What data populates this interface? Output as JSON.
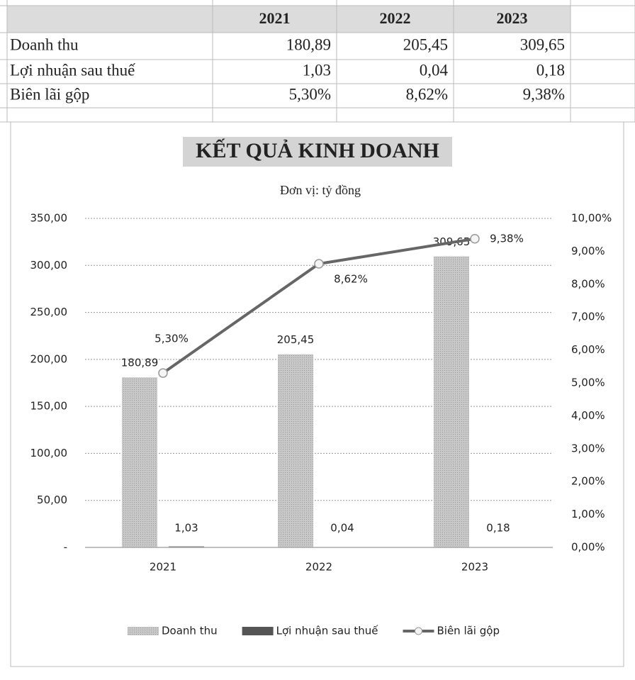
{
  "table": {
    "header": [
      "2021",
      "2022",
      "2023"
    ],
    "rows": [
      [
        "Doanh thu",
        "180,89",
        "205,45",
        "309,65"
      ],
      [
        "Lợi nhuận sau thuế",
        "1,03",
        "0,04",
        "0,18"
      ],
      [
        "Biên lãi gộp",
        "5,30%",
        "8,62%",
        "9,38%"
      ]
    ]
  },
  "chart_data": {
    "type": "bar",
    "title": "KẾT QUẢ KINH DOANH",
    "subtitle": "Đơn vị: tỷ đồng",
    "categories": [
      "2021",
      "2022",
      "2023"
    ],
    "series": [
      {
        "name": "Doanh thu",
        "type": "bar",
        "color": "#bdbdbd",
        "values": [
          180.89,
          205.45,
          309.65
        ],
        "value_labels": [
          "180,89",
          "205,45",
          "309,65"
        ]
      },
      {
        "name": "Lợi nhuận sau thuế",
        "type": "bar",
        "color": "#555555",
        "values": [
          1.03,
          0.04,
          0.18
        ],
        "value_labels": [
          "1,03",
          "0,04",
          "0,18"
        ]
      },
      {
        "name": "Biên lãi gộp",
        "type": "line",
        "axis": "y2",
        "color": "#666666",
        "values": [
          5.3,
          8.62,
          9.38
        ],
        "value_labels": [
          "5,30%",
          "8,62%",
          "9,38%"
        ]
      }
    ],
    "ylim": [
      0,
      350
    ],
    "yticks": [
      {
        "value": 0,
        "label": "-"
      },
      {
        "value": 50,
        "label": "50,00"
      },
      {
        "value": 100,
        "label": "100,00"
      },
      {
        "value": 150,
        "label": "150,00"
      },
      {
        "value": 200,
        "label": "200,00"
      },
      {
        "value": 250,
        "label": "250,00"
      },
      {
        "value": 300,
        "label": "300,00"
      },
      {
        "value": 350,
        "label": "350,00"
      }
    ],
    "y2lim": [
      0,
      10
    ],
    "y2ticks": [
      {
        "value": 0,
        "label": "0,00%"
      },
      {
        "value": 1,
        "label": "1,00%"
      },
      {
        "value": 2,
        "label": "2,00%"
      },
      {
        "value": 3,
        "label": "3,00%"
      },
      {
        "value": 4,
        "label": "4,00%"
      },
      {
        "value": 5,
        "label": "5,00%"
      },
      {
        "value": 6,
        "label": "6,00%"
      },
      {
        "value": 7,
        "label": "7,00%"
      },
      {
        "value": 8,
        "label": "8,00%"
      },
      {
        "value": 9,
        "label": "9,00%"
      },
      {
        "value": 10,
        "label": "10,00%"
      }
    ],
    "grid": true,
    "legend": "bottom"
  }
}
